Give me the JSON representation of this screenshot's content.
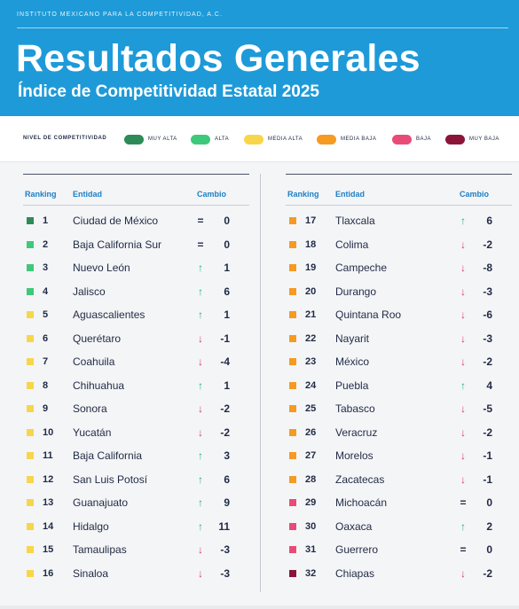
{
  "header": {
    "org": "INSTITUTO MEXICANO PARA LA COMPETITIVIDAD, A.C.",
    "title": "Resultados Generales",
    "subtitle": "Índice de Competitividad Estatal 2025"
  },
  "legend": {
    "label": "NIVEL DE COMPETITIVIDAD",
    "items": [
      {
        "label": "MUY ALTA",
        "color": "#2e8b57"
      },
      {
        "label": "ALTA",
        "color": "#3ec97a"
      },
      {
        "label": "MEDIA ALTA",
        "color": "#f7d64a"
      },
      {
        "label": "MEDIA BAJA",
        "color": "#f59a23"
      },
      {
        "label": "BAJA",
        "color": "#e94b78"
      },
      {
        "label": "MUY BAJA",
        "color": "#8b1538"
      }
    ]
  },
  "columns": {
    "ranking": "Ranking",
    "entidad": "Entidad",
    "cambio": "Cambio"
  },
  "colors": {
    "up": "#22b36b",
    "down": "#d9366e",
    "equal": "#1f2a44"
  },
  "rows_left": [
    {
      "rank": "1",
      "entidad": "Ciudad de México",
      "arrow": "=",
      "dir": "equal",
      "cambio": "0",
      "color": "#2e8b57"
    },
    {
      "rank": "2",
      "entidad": "Baja California Sur",
      "arrow": "=",
      "dir": "equal",
      "cambio": "0",
      "color": "#3ec97a"
    },
    {
      "rank": "3",
      "entidad": "Nuevo León",
      "arrow": "↑",
      "dir": "up",
      "cambio": "1",
      "color": "#3ec97a"
    },
    {
      "rank": "4",
      "entidad": "Jalisco",
      "arrow": "↑",
      "dir": "up",
      "cambio": "6",
      "color": "#3ec97a"
    },
    {
      "rank": "5",
      "entidad": "Aguascalientes",
      "arrow": "↑",
      "dir": "up",
      "cambio": "1",
      "color": "#f7d64a"
    },
    {
      "rank": "6",
      "entidad": "Querétaro",
      "arrow": "↓",
      "dir": "down",
      "cambio": "-1",
      "color": "#f7d64a"
    },
    {
      "rank": "7",
      "entidad": "Coahuila",
      "arrow": "↓",
      "dir": "down",
      "cambio": "-4",
      "color": "#f7d64a"
    },
    {
      "rank": "8",
      "entidad": "Chihuahua",
      "arrow": "↑",
      "dir": "up",
      "cambio": "1",
      "color": "#f7d64a"
    },
    {
      "rank": "9",
      "entidad": "Sonora",
      "arrow": "↓",
      "dir": "down",
      "cambio": "-2",
      "color": "#f7d64a"
    },
    {
      "rank": "10",
      "entidad": "Yucatán",
      "arrow": "↓",
      "dir": "down",
      "cambio": "-2",
      "color": "#f7d64a"
    },
    {
      "rank": "11",
      "entidad": "Baja California",
      "arrow": "↑",
      "dir": "up",
      "cambio": "3",
      "color": "#f7d64a"
    },
    {
      "rank": "12",
      "entidad": "San Luis Potosí",
      "arrow": "↑",
      "dir": "up",
      "cambio": "6",
      "color": "#f7d64a"
    },
    {
      "rank": "13",
      "entidad": "Guanajuato",
      "arrow": "↑",
      "dir": "up",
      "cambio": "9",
      "color": "#f7d64a"
    },
    {
      "rank": "14",
      "entidad": "Hidalgo",
      "arrow": "↑",
      "dir": "up",
      "cambio": "11",
      "color": "#f7d64a"
    },
    {
      "rank": "15",
      "entidad": "Tamaulipas",
      "arrow": "↓",
      "dir": "down",
      "cambio": "-3",
      "color": "#f7d64a"
    },
    {
      "rank": "16",
      "entidad": "Sinaloa",
      "arrow": "↓",
      "dir": "down",
      "cambio": "-3",
      "color": "#f7d64a"
    }
  ],
  "rows_right": [
    {
      "rank": "17",
      "entidad": "Tlaxcala",
      "arrow": "↑",
      "dir": "up",
      "cambio": "6",
      "color": "#f59a23"
    },
    {
      "rank": "18",
      "entidad": "Colima",
      "arrow": "↓",
      "dir": "down",
      "cambio": "-2",
      "color": "#f59a23"
    },
    {
      "rank": "19",
      "entidad": "Campeche",
      "arrow": "↓",
      "dir": "down",
      "cambio": "-8",
      "color": "#f59a23"
    },
    {
      "rank": "20",
      "entidad": "Durango",
      "arrow": "↓",
      "dir": "down",
      "cambio": "-3",
      "color": "#f59a23"
    },
    {
      "rank": "21",
      "entidad": "Quintana Roo",
      "arrow": "↓",
      "dir": "down",
      "cambio": "-6",
      "color": "#f59a23"
    },
    {
      "rank": "22",
      "entidad": "Nayarit",
      "arrow": "↓",
      "dir": "down",
      "cambio": "-3",
      "color": "#f59a23"
    },
    {
      "rank": "23",
      "entidad": "México",
      "arrow": "↓",
      "dir": "down",
      "cambio": "-2",
      "color": "#f59a23"
    },
    {
      "rank": "24",
      "entidad": "Puebla",
      "arrow": "↑",
      "dir": "up",
      "cambio": "4",
      "color": "#f59a23"
    },
    {
      "rank": "25",
      "entidad": "Tabasco",
      "arrow": "↓",
      "dir": "down",
      "cambio": "-5",
      "color": "#f59a23"
    },
    {
      "rank": "26",
      "entidad": "Veracruz",
      "arrow": "↓",
      "dir": "down",
      "cambio": "-2",
      "color": "#f59a23"
    },
    {
      "rank": "27",
      "entidad": "Morelos",
      "arrow": "↓",
      "dir": "down",
      "cambio": "-1",
      "color": "#f59a23"
    },
    {
      "rank": "28",
      "entidad": "Zacatecas",
      "arrow": "↓",
      "dir": "down",
      "cambio": "-1",
      "color": "#f59a23"
    },
    {
      "rank": "29",
      "entidad": "Michoacán",
      "arrow": "=",
      "dir": "equal",
      "cambio": "0",
      "color": "#e94b78"
    },
    {
      "rank": "30",
      "entidad": "Oaxaca",
      "arrow": "↑",
      "dir": "up",
      "cambio": "2",
      "color": "#e94b78"
    },
    {
      "rank": "31",
      "entidad": "Guerrero",
      "arrow": "=",
      "dir": "equal",
      "cambio": "0",
      "color": "#e94b78"
    },
    {
      "rank": "32",
      "entidad": "Chiapas",
      "arrow": "↓",
      "dir": "down",
      "cambio": "-2",
      "color": "#8b1538"
    }
  ]
}
